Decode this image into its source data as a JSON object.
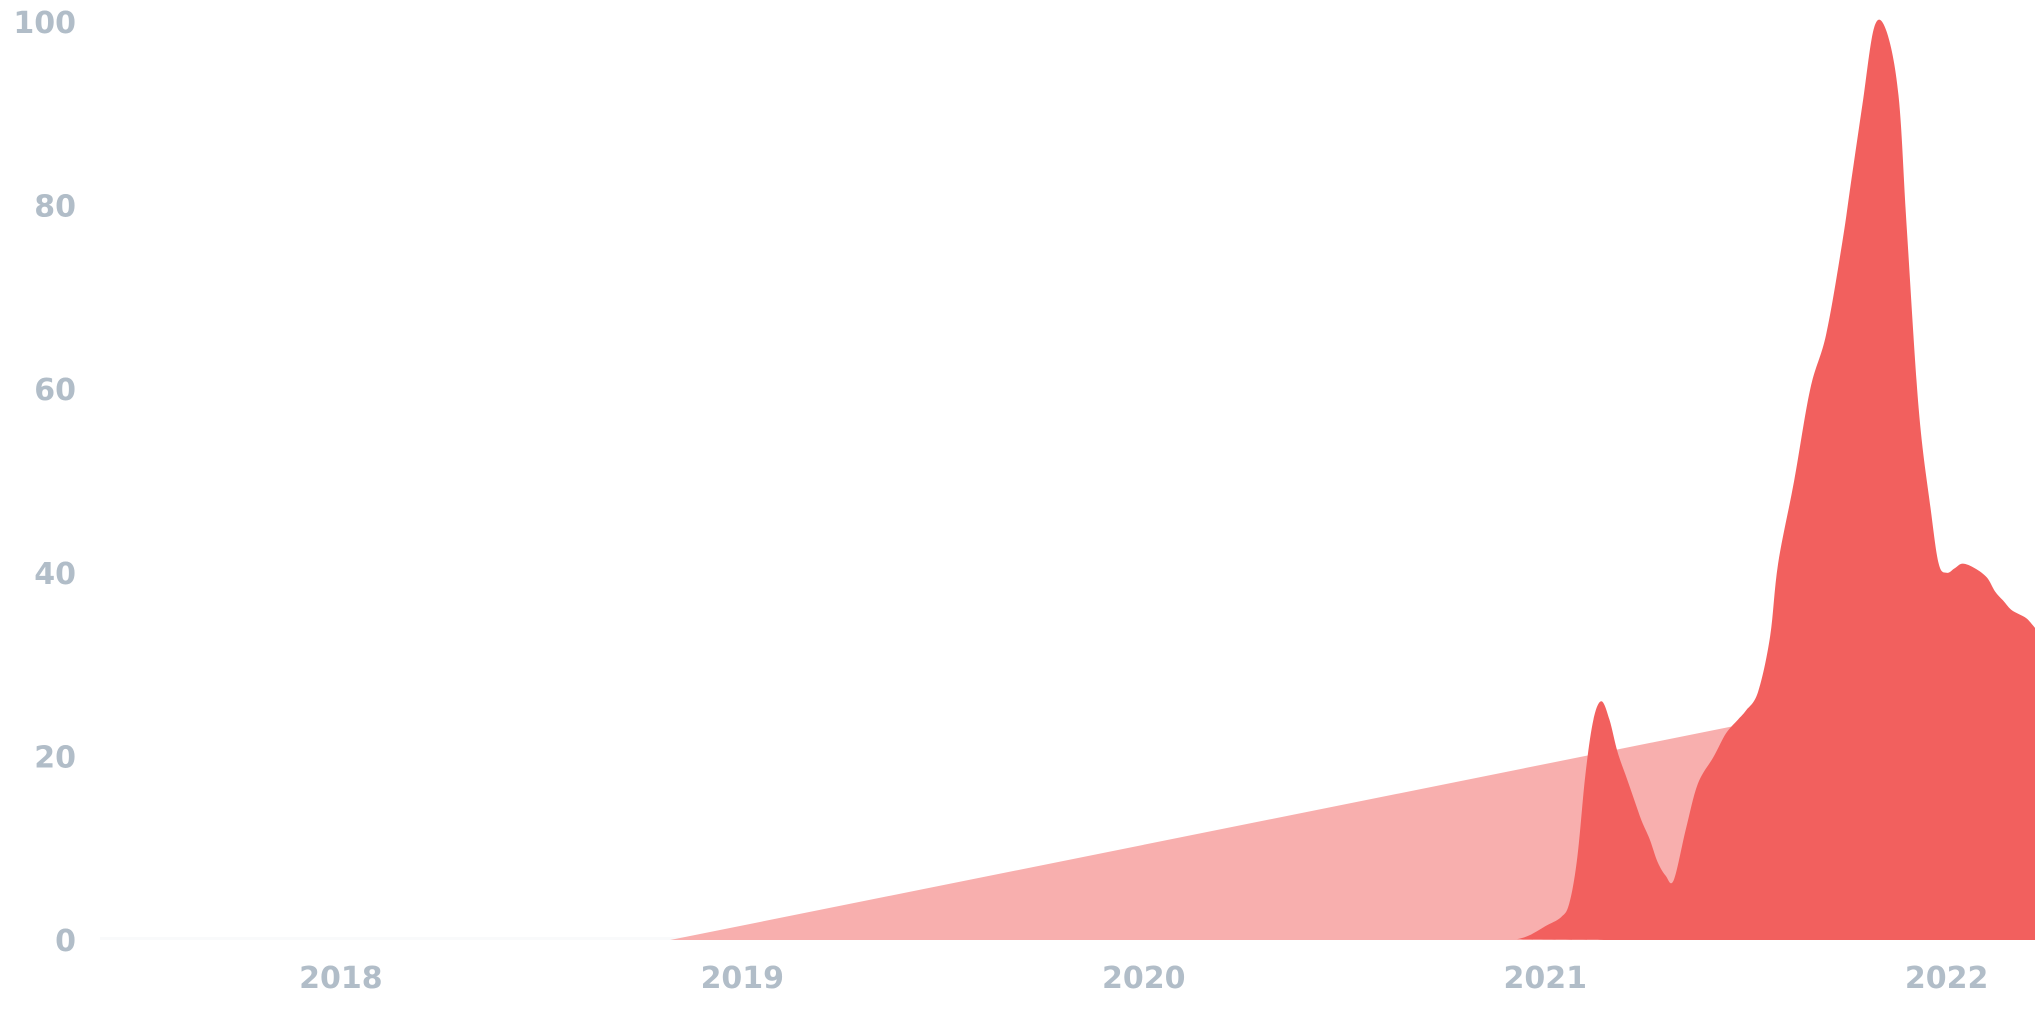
{
  "chart_data": {
    "type": "area",
    "title": "",
    "xlabel": "",
    "ylabel": "",
    "x_range": [
      2017.4,
      2022.22
    ],
    "ylim": [
      0,
      100
    ],
    "y_ticks": [
      "0",
      "20",
      "40",
      "60",
      "80",
      "100"
    ],
    "x_ticks": [
      "2018",
      "2019",
      "2020",
      "2021",
      "2022"
    ],
    "grid": false,
    "legend": "none",
    "colors": {
      "baseline": "#f9fafb",
      "light_area": "#f8afae",
      "dark_area": "#f2605e",
      "tick_text": "#b1bdc8"
    },
    "series": [
      {
        "x": [
          2017.4,
          2018.82,
          2021.72,
          2021.78,
          2022.22
        ],
        "values": [
          0,
          0,
          25.5,
          26,
          26
        ]
      },
      {
        "x": [
          2017.4,
          2020.9,
          2020.93,
          2020.96,
          2021.0,
          2021.04,
          2021.06,
          2021.08,
          2021.1,
          2021.12,
          2021.14,
          2021.16,
          2021.18,
          2021.2,
          2021.22,
          2021.24,
          2021.26,
          2021.28,
          2021.3,
          2021.32,
          2021.35,
          2021.38,
          2021.42,
          2021.45,
          2021.48,
          2021.5,
          2021.53,
          2021.56,
          2021.58,
          2021.62,
          2021.66,
          2021.7,
          2021.74,
          2021.76,
          2021.79,
          2021.82,
          2021.85,
          2021.88,
          2021.9,
          2021.93,
          2021.96,
          2021.98,
          2022.0,
          2022.02,
          2022.04,
          2022.07,
          2022.1,
          2022.12,
          2022.14,
          2022.16,
          2022.18,
          2022.2,
          2022.22
        ],
        "values": [
          0,
          0,
          0.1,
          0.5,
          1.5,
          2.5,
          4,
          9,
          18,
          24,
          26,
          24,
          20.5,
          18,
          15.5,
          13,
          11,
          8.5,
          7,
          6.5,
          12,
          17,
          20,
          22.5,
          24,
          25,
          27,
          33,
          41,
          50,
          60,
          66,
          76,
          82,
          91,
          99.5,
          99,
          92,
          78,
          58,
          47,
          41,
          40,
          40.5,
          41,
          40.5,
          39.5,
          38,
          37,
          36,
          35.5,
          35,
          34
        ]
      }
    ]
  }
}
